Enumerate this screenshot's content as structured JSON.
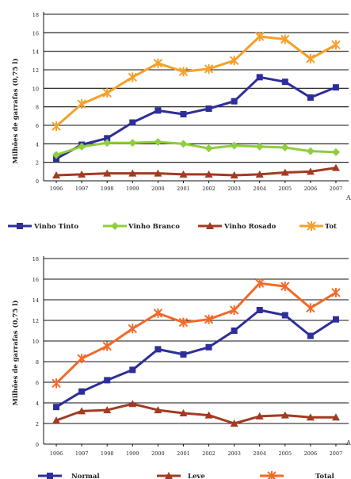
{
  "chart_data": [
    {
      "type": "line",
      "title": "",
      "xlabel": "",
      "x_axis_end_label": "A",
      "ylabel": "Milhões de garrafas (0,75 l)",
      "ylim": [
        0,
        18
      ],
      "yticks": [
        0,
        2,
        4,
        6,
        8,
        10,
        12,
        14,
        16,
        18
      ],
      "grid": true,
      "legend": "bottom",
      "categories": [
        "1996",
        "1997",
        "1998",
        "1999",
        "2000",
        "2001",
        "2002",
        "2003",
        "2004",
        "2005",
        "2006",
        "2007"
      ],
      "series": [
        {
          "name": "Vinho Tinto",
          "color": "#2e2e9a",
          "marker": "square",
          "values": [
            2.4,
            3.9,
            4.6,
            6.3,
            7.6,
            7.2,
            7.8,
            8.6,
            11.2,
            10.7,
            9.0,
            10.1
          ]
        },
        {
          "name": "Vinho Branco",
          "color": "#8fce3c",
          "marker": "diamond",
          "values": [
            2.8,
            3.7,
            4.1,
            4.1,
            4.2,
            4.0,
            3.5,
            3.8,
            3.7,
            3.6,
            3.2,
            3.1
          ]
        },
        {
          "name": "Vinho Rosado",
          "color": "#a33a22",
          "marker": "triangle",
          "values": [
            0.6,
            0.7,
            0.8,
            0.8,
            0.8,
            0.7,
            0.7,
            0.6,
            0.7,
            0.9,
            1.0,
            1.4
          ]
        },
        {
          "name": "Tot",
          "color": "#f5a02a",
          "marker": "star",
          "values": [
            5.9,
            8.3,
            9.5,
            11.2,
            12.7,
            11.8,
            12.1,
            13.0,
            15.6,
            15.3,
            13.2,
            14.7
          ]
        }
      ]
    },
    {
      "type": "line",
      "title": "",
      "xlabel": "",
      "x_axis_end_label": "A",
      "ylabel": "Milhões de garrafas (0,75 l)",
      "ylim": [
        0,
        18
      ],
      "yticks": [
        0,
        2,
        4,
        6,
        8,
        10,
        12,
        14,
        16,
        18
      ],
      "grid": true,
      "legend": "bottom",
      "categories": [
        "1996",
        "1997",
        "1998",
        "1999",
        "2000",
        "2001",
        "2002",
        "2003",
        "2004",
        "2005",
        "2006",
        "2007"
      ],
      "series": [
        {
          "name": "Normal",
          "color": "#2e2e9a",
          "marker": "square",
          "values": [
            3.6,
            5.1,
            6.2,
            7.2,
            9.2,
            8.7,
            9.4,
            11.0,
            13.0,
            12.5,
            10.5,
            12.1
          ]
        },
        {
          "name": "Leve",
          "color": "#a33a22",
          "marker": "triangle",
          "values": [
            2.3,
            3.2,
            3.3,
            3.9,
            3.3,
            3.0,
            2.8,
            2.0,
            2.7,
            2.8,
            2.6,
            2.6
          ]
        },
        {
          "name": "Total",
          "color": "#f26a2a",
          "marker": "star",
          "values": [
            5.9,
            8.3,
            9.5,
            11.2,
            12.7,
            11.8,
            12.1,
            13.0,
            15.6,
            15.3,
            13.2,
            14.7
          ]
        }
      ]
    }
  ]
}
